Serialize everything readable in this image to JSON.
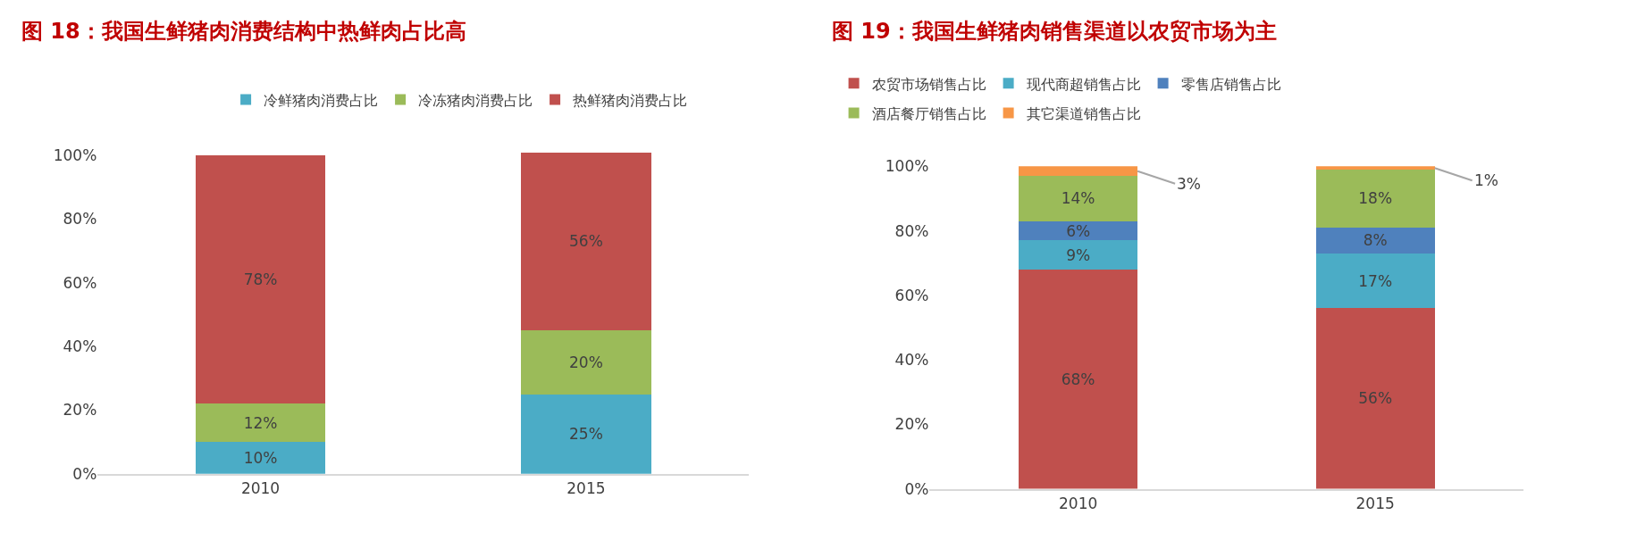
{
  "chart_data": [
    {
      "type": "bar",
      "stacked": true,
      "title": "图 18：我国生鲜猪肉消费结构中热鲜肉占比高",
      "categories": [
        "2010",
        "2015"
      ],
      "series": [
        {
          "name": "冷鲜猪肉消费占比",
          "color": "#4bacc6",
          "values": [
            10,
            25
          ],
          "value_labels": [
            "10%",
            "25%"
          ]
        },
        {
          "name": "冷冻猪肉消费占比",
          "color": "#9bbb59",
          "values": [
            12,
            20
          ],
          "value_labels": [
            "12%",
            "20%"
          ]
        },
        {
          "name": "热鲜猪肉消费占比",
          "color": "#c0504d",
          "values": [
            78,
            56
          ],
          "value_labels": [
            "78%",
            "56%"
          ]
        }
      ],
      "ylim": [
        0,
        101
      ],
      "yticks": [
        {
          "value": 0,
          "label": "0%"
        },
        {
          "value": 20,
          "label": "20%"
        },
        {
          "value": 40,
          "label": "40%"
        },
        {
          "value": 60,
          "label": "60%"
        },
        {
          "value": 80,
          "label": "80%"
        },
        {
          "value": 100,
          "label": "100%"
        }
      ],
      "grid": false,
      "legend": "top"
    },
    {
      "type": "bar",
      "stacked": true,
      "title": "图 19：我国生鲜猪肉销售渠道以农贸市场为主",
      "categories": [
        "2010",
        "2015"
      ],
      "series": [
        {
          "name": "农贸市场销售占比",
          "color": "#c0504d",
          "values": [
            68,
            56
          ],
          "value_labels": [
            "68%",
            "56%"
          ]
        },
        {
          "name": "现代商超销售占比",
          "color": "#4bacc6",
          "values": [
            9,
            17
          ],
          "value_labels": [
            "9%",
            "17%"
          ]
        },
        {
          "name": "零售店销售占比",
          "color": "#4f81bd",
          "values": [
            6,
            8
          ],
          "value_labels": [
            "6%",
            "8%"
          ]
        },
        {
          "name": "酒店餐厅销售占比",
          "color": "#9bbb59",
          "values": [
            14,
            18
          ],
          "value_labels": [
            "14%",
            "18%"
          ]
        },
        {
          "name": "其它渠道销售占比",
          "color": "#f79646",
          "values": [
            3,
            1
          ],
          "value_labels": [
            "3%",
            "1%"
          ]
        }
      ],
      "ylim": [
        0,
        100
      ],
      "yticks": [
        {
          "value": 0,
          "label": "0%"
        },
        {
          "value": 20,
          "label": "20%"
        },
        {
          "value": 40,
          "label": "40%"
        },
        {
          "value": 60,
          "label": "60%"
        },
        {
          "value": 80,
          "label": "80%"
        },
        {
          "value": 100,
          "label": "100%"
        }
      ],
      "grid": false,
      "legend": "top"
    }
  ]
}
